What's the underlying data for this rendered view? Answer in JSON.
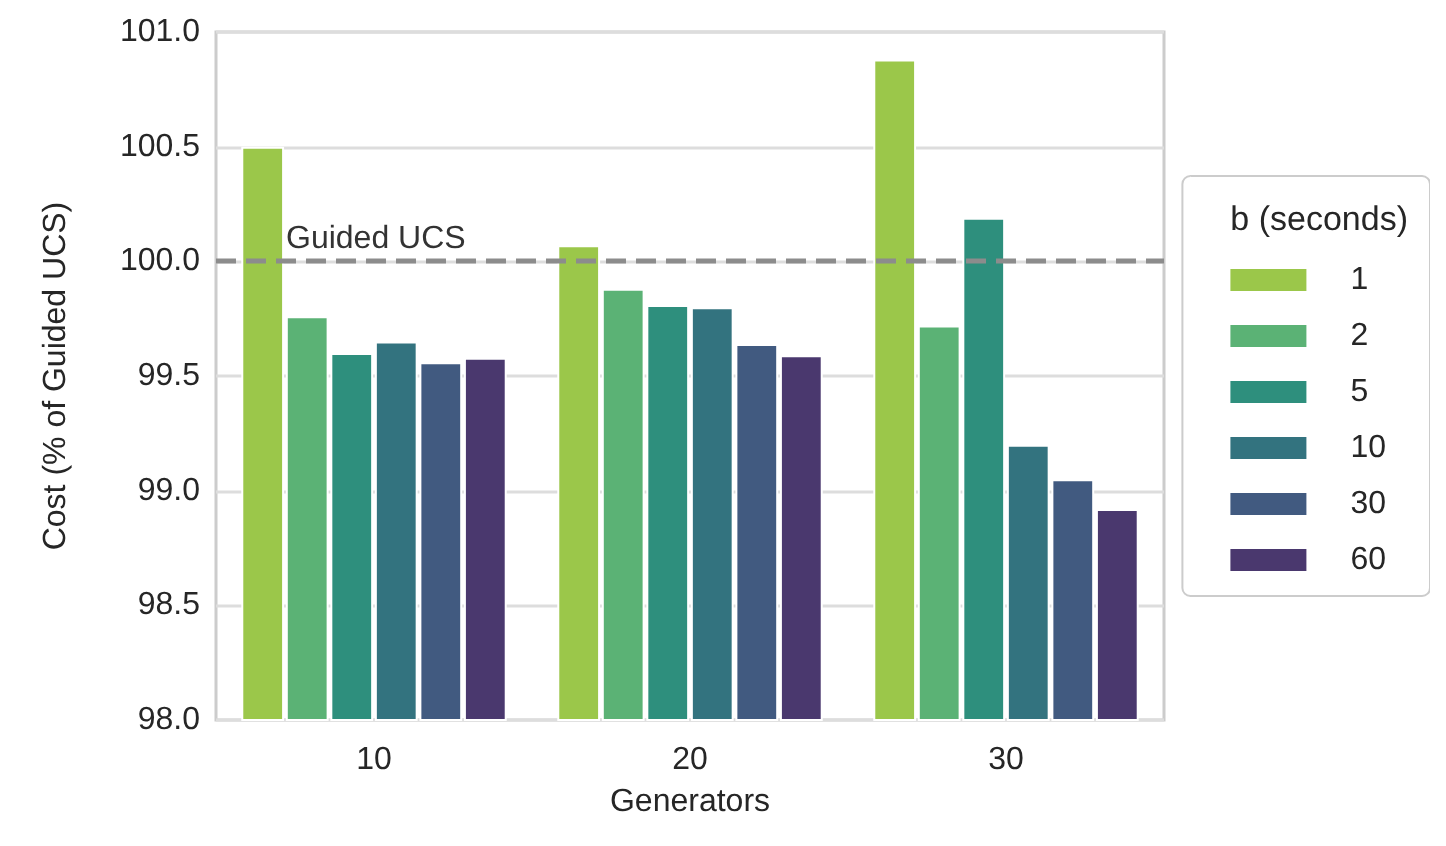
{
  "chart_data": {
    "type": "bar",
    "xlabel": "Generators",
    "ylabel": "Cost (% of Guided UCS)",
    "legend_title": "b (seconds)",
    "categories": [
      "10",
      "20",
      "30"
    ],
    "series": [
      {
        "name": "1",
        "color": "#9bc74a",
        "values": [
          100.5,
          100.07,
          100.88
        ]
      },
      {
        "name": "2",
        "color": "#5bb275",
        "values": [
          99.76,
          99.88,
          99.72
        ]
      },
      {
        "name": "5",
        "color": "#2e8f7d",
        "values": [
          99.6,
          99.81,
          100.19
        ]
      },
      {
        "name": "10",
        "color": "#33737f",
        "values": [
          99.65,
          99.8,
          99.2
        ]
      },
      {
        "name": "30",
        "color": "#415a80",
        "values": [
          99.56,
          99.64,
          99.05
        ]
      },
      {
        "name": "60",
        "color": "#4a386e",
        "values": [
          99.58,
          99.59,
          98.92
        ]
      }
    ],
    "ylim": [
      98.0,
      101.0
    ],
    "yticks": [
      {
        "value": 98,
        "label": "98.0"
      },
      {
        "value": 98.5,
        "label": "98.5"
      },
      {
        "value": 99,
        "label": "99.0"
      },
      {
        "value": 99.5,
        "label": "99.5"
      },
      {
        "value": 100,
        "label": "100.0"
      },
      {
        "value": 100.5,
        "label": "100.5"
      },
      {
        "value": 101,
        "label": "101.0"
      }
    ],
    "ref_lines": [
      {
        "axis": "y",
        "value": 100,
        "label": "Guided UCS",
        "color": "#8c8c8c",
        "line_style": "dashed"
      }
    ],
    "grid": "y",
    "legend": "right"
  }
}
